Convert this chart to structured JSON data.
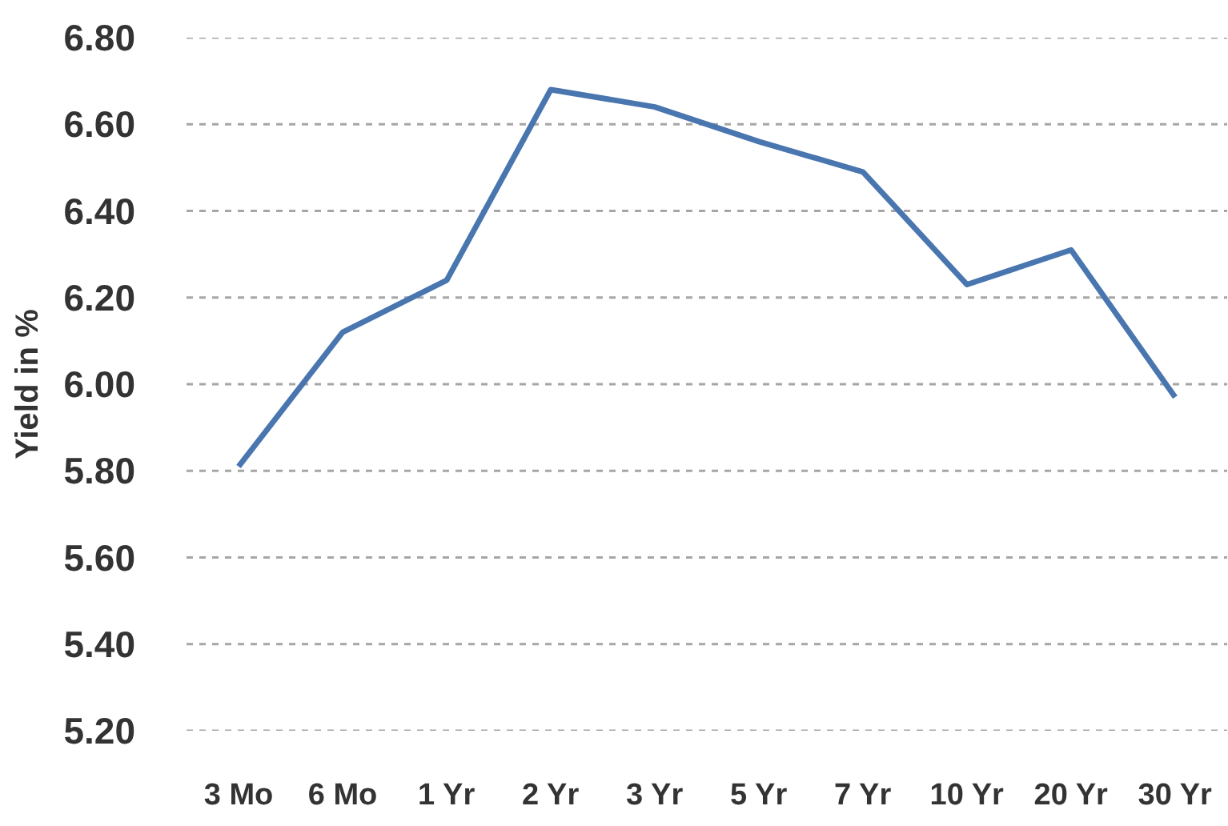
{
  "chart_data": {
    "type": "line",
    "ylabel": "Yield in %",
    "categories": [
      "3 Mo",
      "6 Mo",
      "1 Yr",
      "2 Yr",
      "3 Yr",
      "5 Yr",
      "7 Yr",
      "10 Yr",
      "20 Yr",
      "30 Yr"
    ],
    "series": [
      {
        "color": "#4a76b0",
        "values": [
          5.81,
          6.12,
          6.24,
          6.68,
          6.64,
          6.56,
          6.49,
          6.23,
          6.31,
          5.97
        ]
      }
    ],
    "ylim": [
      5.2,
      6.8
    ],
    "yticks": [
      {
        "value": 5.2,
        "label": "5.20"
      },
      {
        "value": 5.4,
        "label": "5.40"
      },
      {
        "value": 5.6,
        "label": "5.60"
      },
      {
        "value": 5.8,
        "label": "5.80"
      },
      {
        "value": 6.0,
        "label": "6.00"
      },
      {
        "value": 6.2,
        "label": "6.20"
      },
      {
        "value": 6.4,
        "label": "6.40"
      },
      {
        "value": 6.6,
        "label": "6.60"
      },
      {
        "value": 6.8,
        "label": "6.80"
      }
    ],
    "grid": "y",
    "marker": "none",
    "line_style": "solid"
  }
}
